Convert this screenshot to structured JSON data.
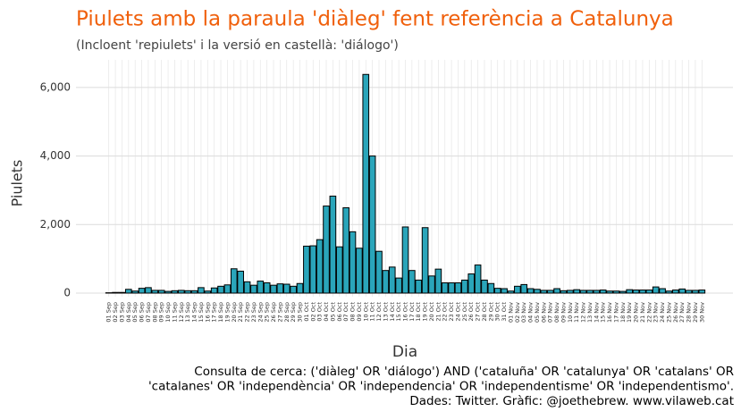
{
  "chart_data": {
    "type": "bar",
    "title": "Piulets amb la paraula 'diàleg' fent referència a Catalunya",
    "subtitle": "(Incloent 'repiulets' i la versió en castellà: 'diálogo')",
    "y_label": "Piulets",
    "x_label": "Dia",
    "caption": [
      "Consulta de cerca: ('diàleg' OR 'diálogo') AND ('cataluña' OR 'catalunya' OR 'catalans' OR",
      "'catalanes' OR 'independència' OR 'independencia' OR 'independentisme' OR 'independentismo'.",
      "Dades: Twitter. Gràfic: @joethebrew. www.vilaweb.cat"
    ],
    "categories": [
      "01 Sep",
      "02 Sep",
      "03 Sep",
      "04 Sep",
      "05 Sep",
      "06 Sep",
      "07 Sep",
      "08 Sep",
      "09 Sep",
      "10 Sep",
      "11 Sep",
      "12 Sep",
      "13 Sep",
      "14 Sep",
      "15 Sep",
      "16 Sep",
      "17 Sep",
      "18 Sep",
      "19 Sep",
      "20 Sep",
      "21 Sep",
      "22 Sep",
      "23 Sep",
      "24 Sep",
      "25 Sep",
      "26 Sep",
      "27 Sep",
      "28 Sep",
      "29 Sep",
      "30 Sep",
      "01 Oct",
      "02 Oct",
      "03 Oct",
      "04 Oct",
      "05 Oct",
      "06 Oct",
      "07 Oct",
      "08 Oct",
      "09 Oct",
      "10 Oct",
      "11 Oct",
      "12 Oct",
      "13 Oct",
      "14 Oct",
      "15 Oct",
      "16 Oct",
      "17 Oct",
      "18 Oct",
      "19 Oct",
      "20 Oct",
      "21 Oct",
      "22 Oct",
      "23 Oct",
      "24 Oct",
      "25 Oct",
      "26 Oct",
      "27 Oct",
      "28 Oct",
      "29 Oct",
      "30 Oct",
      "31 Oct",
      "01 Nov",
      "02 Nov",
      "03 Nov",
      "04 Nov",
      "05 Nov",
      "06 Nov",
      "07 Nov",
      "08 Nov",
      "09 Nov",
      "10 Nov",
      "11 Nov",
      "12 Nov",
      "13 Nov",
      "14 Nov",
      "15 Nov",
      "16 Nov",
      "17 Nov",
      "18 Nov",
      "19 Nov",
      "20 Nov",
      "21 Nov",
      "22 Nov",
      "23 Nov",
      "24 Nov",
      "25 Nov",
      "26 Nov",
      "27 Nov",
      "28 Nov",
      "29 Nov",
      "30 Nov"
    ],
    "values": [
      10,
      20,
      20,
      110,
      60,
      140,
      160,
      80,
      80,
      50,
      70,
      80,
      70,
      70,
      160,
      60,
      150,
      200,
      240,
      710,
      640,
      330,
      230,
      350,
      300,
      230,
      270,
      260,
      200,
      280,
      1370,
      1380,
      1560,
      2540,
      2830,
      1350,
      2490,
      1790,
      1310,
      6380,
      4000,
      1220,
      660,
      760,
      440,
      1930,
      660,
      380,
      1910,
      500,
      700,
      300,
      300,
      300,
      380,
      560,
      820,
      380,
      280,
      140,
      130,
      60,
      200,
      250,
      130,
      110,
      80,
      80,
      130,
      70,
      80,
      100,
      80,
      80,
      80,
      90,
      60,
      60,
      50,
      100,
      90,
      90,
      90,
      180,
      130,
      60,
      90,
      120,
      80,
      80,
      90
    ],
    "color": "#2aa5ba",
    "ylim": [
      0,
      6700
    ],
    "yticks": [
      0,
      {
        "value": 2000,
        "label": "2,000"
      },
      {
        "value": 4000,
        "label": "4,000"
      },
      {
        "value": 6000,
        "label": "6,000"
      }
    ],
    "grid": true
  }
}
